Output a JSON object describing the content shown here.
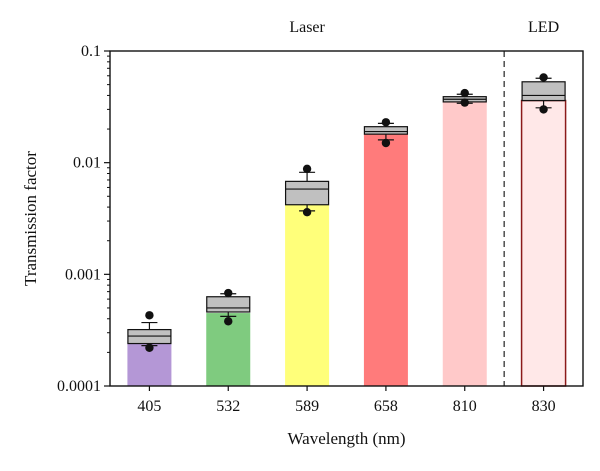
{
  "chart_data": {
    "type": "bar",
    "title": "",
    "xlabel": "Wavelength (nm)",
    "ylabel": "Transmission factor",
    "yscale": "log",
    "ylim": [
      0.0001,
      0.1
    ],
    "yticks": [
      {
        "value": 0.0001,
        "label": "0.0001"
      },
      {
        "value": 0.001,
        "label": "0.001"
      },
      {
        "value": 0.01,
        "label": "0.01"
      },
      {
        "value": 0.1,
        "label": "0.1"
      }
    ],
    "group_labels": [
      {
        "text": "Laser",
        "categories": [
          "405",
          "532",
          "589",
          "658",
          "810"
        ]
      },
      {
        "text": "LED",
        "categories": [
          "830"
        ]
      }
    ],
    "categories": [
      "405",
      "532",
      "589",
      "658",
      "810",
      "830"
    ],
    "values": [
      0.00025,
      0.00045,
      0.0042,
      0.018,
      0.036,
      0.036
    ],
    "bar_colors": [
      "#b497d6",
      "#7fcb7f",
      "#ffff7a",
      "#ff7b7b",
      "#ffc9c9",
      "#ffe8e8"
    ],
    "bar_outline": [
      null,
      null,
      null,
      null,
      null,
      "#8b1a1a"
    ],
    "box_color": "#c0c0c0",
    "boxes": [
      {
        "category": "405",
        "whisker_low": 0.00023,
        "q1": 0.00024,
        "median": 0.00028,
        "q3": 0.00032,
        "whisker_high": 0.00037,
        "outliers": [
          0.00043,
          0.00022
        ]
      },
      {
        "category": "532",
        "whisker_low": 0.00042,
        "q1": 0.00046,
        "median": 0.0005,
        "q3": 0.00063,
        "whisker_high": 0.00067,
        "outliers": [
          0.00068,
          0.00038
        ]
      },
      {
        "category": "589",
        "whisker_low": 0.0037,
        "q1": 0.0042,
        "median": 0.0058,
        "q3": 0.0068,
        "whisker_high": 0.0082,
        "outliers": [
          0.0088,
          0.0036
        ]
      },
      {
        "category": "658",
        "whisker_low": 0.016,
        "q1": 0.018,
        "median": 0.019,
        "q3": 0.021,
        "whisker_high": 0.0225,
        "outliers": [
          0.023,
          0.015
        ]
      },
      {
        "category": "810",
        "whisker_low": 0.034,
        "q1": 0.035,
        "median": 0.037,
        "q3": 0.039,
        "whisker_high": 0.041,
        "outliers": [
          0.042,
          0.0345
        ]
      },
      {
        "category": "830",
        "whisker_low": 0.031,
        "q1": 0.036,
        "median": 0.04,
        "q3": 0.053,
        "whisker_high": 0.057,
        "outliers": [
          0.058,
          0.03
        ]
      }
    ],
    "separator_after": "810",
    "grid": false,
    "legend": "none"
  }
}
